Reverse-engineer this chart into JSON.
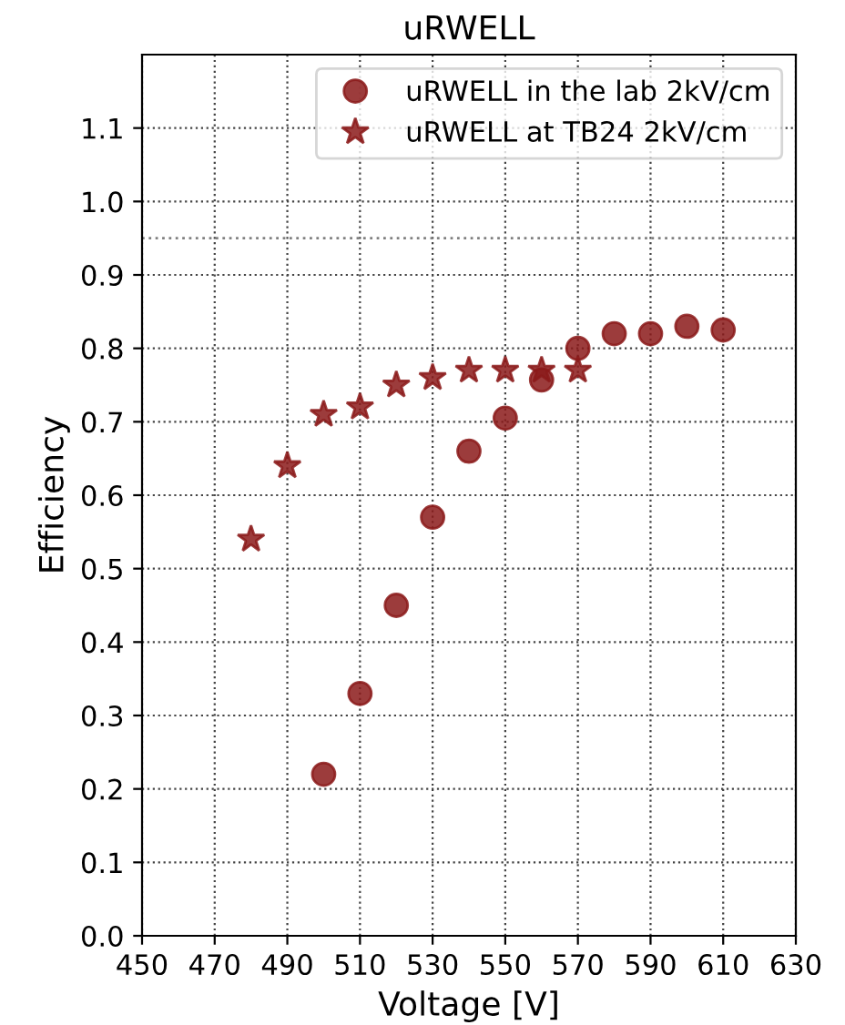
{
  "chart_data": {
    "type": "scatter",
    "title": "uRWELL",
    "xlabel": "Voltage [V]",
    "ylabel": "Efficiency",
    "xlim": [
      450,
      630
    ],
    "xticks": [
      450,
      470,
      490,
      510,
      530,
      550,
      570,
      590,
      610,
      630
    ],
    "ylim": [
      0,
      1.2
    ],
    "yticks": [
      {
        "value": 0,
        "label": "0.0"
      },
      0.1,
      0.2,
      0.3,
      0.4,
      0.5,
      0.6,
      0.7,
      0.8,
      0.9,
      {
        "value": 1,
        "label": "1.0"
      },
      1.1
    ],
    "grid": true,
    "legend": "top right",
    "ref_lines": [
      {
        "axis": "y",
        "value": 0.95,
        "color": "#808080",
        "line_style": "dotted"
      }
    ],
    "series": [
      {
        "name": "uRWELL in the lab 2kV/cm",
        "color": "#8b1a1a",
        "marker": "circle",
        "x": [
          500,
          510,
          520,
          530,
          540,
          550,
          560,
          570,
          580,
          590,
          600,
          610
        ],
        "values": [
          0.22,
          0.33,
          0.45,
          0.57,
          0.66,
          0.705,
          0.757,
          0.8,
          0.82,
          0.82,
          0.83,
          0.825
        ]
      },
      {
        "name": "uRWELL at TB24 2kV/cm",
        "color": "#8b1a1a",
        "marker": "star",
        "x": [
          480,
          490,
          500,
          510,
          520,
          530,
          540,
          550,
          560,
          570
        ],
        "values": [
          0.54,
          0.64,
          0.71,
          0.72,
          0.75,
          0.76,
          0.77,
          0.77,
          0.77,
          0.77
        ]
      }
    ]
  }
}
